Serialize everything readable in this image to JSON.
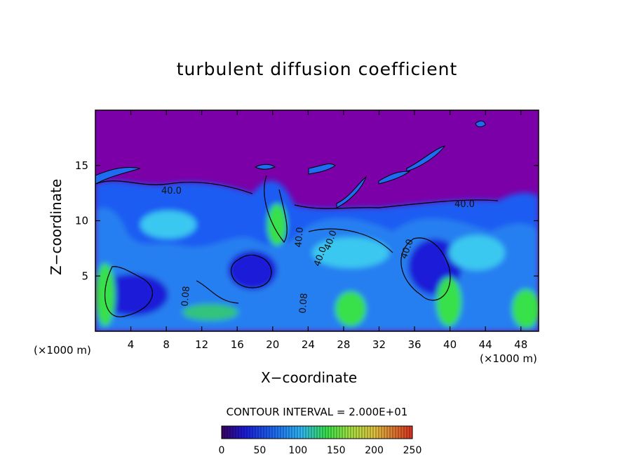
{
  "chart_data": {
    "type": "heatmap",
    "title": "turbulent diffusion coefficient",
    "xlabel": "X−coordinate",
    "ylabel": "Z−coordinate",
    "x_unit": "(×1000 m)",
    "xlim": [
      0,
      50
    ],
    "ylim": [
      0,
      20
    ],
    "x_ticks": [
      4,
      8,
      12,
      16,
      20,
      24,
      28,
      32,
      36,
      40,
      44,
      48
    ],
    "y_ticks": [
      5,
      10,
      15
    ],
    "contour_interval_text": "CONTOUR INTERVAL = 2.000E+01",
    "contour_labels": [
      "40.0",
      "40.0",
      "40.0",
      "40.0",
      "40.0",
      "0.08",
      "0.08",
      "40.0"
    ],
    "colorbar": {
      "ticks": [
        0,
        50,
        100,
        150,
        200,
        250
      ],
      "range": [
        0,
        250
      ]
    },
    "colors": {
      "background_top": "#7b00a8",
      "dark_blue": "#1a1ad8",
      "blue": "#1e5cf2",
      "cyan": "#2fb8f2",
      "green": "#37e04a"
    }
  }
}
